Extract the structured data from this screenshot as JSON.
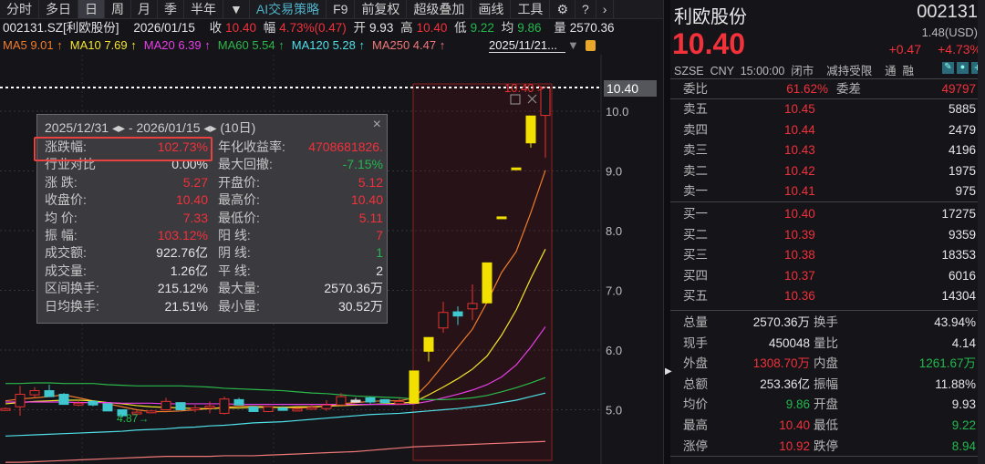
{
  "toolbar": {
    "tabs": [
      {
        "label": "分时"
      },
      {
        "label": "多日"
      },
      {
        "label": "日",
        "active": true
      },
      {
        "label": "周"
      },
      {
        "label": "月"
      },
      {
        "label": "季"
      },
      {
        "label": "半年"
      },
      {
        "label": "▼"
      },
      {
        "label": "AI交易策略"
      },
      {
        "label": "F9"
      },
      {
        "label": "前复权"
      },
      {
        "label": "超级叠加"
      },
      {
        "label": "画线"
      },
      {
        "label": "工具"
      },
      {
        "label": "⚙"
      },
      {
        "label": "?"
      },
      {
        "label": "›"
      }
    ]
  },
  "quote_bar": {
    "symbol": "002131.SZ[利欧股份]",
    "date": "2026/01/15",
    "close_label": "收",
    "close": "10.40",
    "chg_label": "幅",
    "chg": "4.73%(0.47)",
    "open_label": "开",
    "open": "9.93",
    "high_label": "高",
    "high": "10.40",
    "low_label": "低",
    "low": "9.22",
    "avg_label": "均",
    "avg": "9.86",
    "vol_label": "量",
    "vol": "2570.36"
  },
  "ma_bar": {
    "items": [
      {
        "label": "MA5 9.01 ↑",
        "color": "#f07c2a"
      },
      {
        "label": "MA10 7.69 ↑",
        "color": "#f5e52a"
      },
      {
        "label": "MA20 6.39 ↑",
        "color": "#e83ee8"
      },
      {
        "label": "MA60 5.54 ↑",
        "color": "#2cb84a"
      },
      {
        "label": "MA120 5.28 ↑",
        "color": "#4fe0e8"
      },
      {
        "label": "MA250 4.47 ↑",
        "color": "#f07878"
      }
    ],
    "range": "2025/11/21..."
  },
  "chart_data": {
    "type": "candlestick",
    "y_ticks": [
      "10.0",
      "9.0",
      "8.0",
      "7.0",
      "6.0",
      "5.0"
    ],
    "last_price": "10.40",
    "last_label": "10.40 >",
    "low_marker": "4.87→",
    "candles": [
      [
        5.0,
        5.02,
        5.04,
        4.98,
        "up"
      ],
      [
        5.05,
        5.26,
        5.4,
        4.9,
        "up"
      ],
      [
        5.25,
        5.32,
        5.38,
        5.2,
        "up"
      ],
      [
        5.32,
        5.22,
        5.42,
        5.22,
        "down"
      ],
      [
        5.26,
        5.09,
        5.28,
        5.09,
        "down"
      ],
      [
        5.11,
        5.11,
        5.16,
        5.06,
        "up"
      ],
      [
        5.14,
        5.08,
        5.16,
        5.06,
        "down"
      ],
      [
        5.1,
        4.98,
        5.1,
        4.98,
        "down"
      ],
      [
        5.0,
        4.9,
        5.0,
        4.87,
        "down"
      ],
      [
        4.96,
        4.96,
        4.99,
        4.93,
        "up"
      ],
      [
        4.95,
        4.98,
        4.99,
        4.95,
        "up"
      ],
      [
        5.0,
        5.14,
        5.2,
        5.0,
        "up"
      ],
      [
        5.12,
        5.0,
        5.12,
        5.0,
        "down"
      ],
      [
        5.0,
        5.03,
        5.08,
        4.96,
        "up"
      ],
      [
        5.06,
        5.06,
        5.14,
        4.94,
        "up"
      ],
      [
        4.94,
        5.18,
        5.22,
        4.92,
        "up"
      ],
      [
        5.17,
        5.08,
        5.2,
        5.08,
        "down"
      ],
      [
        5.05,
        4.97,
        5.05,
        4.97,
        "down"
      ],
      [
        4.97,
        5.05,
        5.06,
        4.96,
        "up"
      ],
      [
        5.03,
        4.99,
        5.06,
        4.99,
        "down"
      ],
      [
        5.0,
        5.01,
        5.03,
        4.98,
        "up"
      ],
      [
        5.04,
        5.04,
        5.08,
        5.0,
        "up"
      ],
      [
        5.02,
        5.08,
        5.16,
        4.98,
        "up"
      ],
      [
        5.08,
        5.22,
        5.28,
        5.08,
        "up"
      ],
      [
        5.16,
        5.16,
        5.2,
        5.12,
        "doji"
      ],
      [
        5.2,
        5.13,
        5.22,
        5.1,
        "down"
      ],
      [
        5.17,
        5.12,
        5.18,
        5.1,
        "down"
      ],
      [
        5.1,
        5.14,
        5.2,
        5.08,
        "up"
      ],
      [
        5.11,
        5.65,
        5.65,
        5.11,
        "limit"
      ],
      [
        5.98,
        6.21,
        6.21,
        5.81,
        "limit"
      ],
      [
        6.37,
        6.63,
        6.81,
        6.29,
        "up"
      ],
      [
        6.64,
        6.57,
        6.73,
        6.42,
        "down"
      ],
      [
        6.69,
        6.78,
        7.1,
        6.5,
        "up"
      ],
      [
        6.79,
        7.46,
        7.46,
        6.79,
        "limit"
      ],
      [
        8.21,
        8.23,
        8.23,
        8.21,
        "limit"
      ],
      [
        9.02,
        9.05,
        9.05,
        9.02,
        "limit"
      ],
      [
        9.47,
        9.92,
        9.92,
        9.39,
        "limit"
      ],
      [
        9.93,
        10.4,
        10.4,
        9.22,
        "up"
      ]
    ],
    "ma": [
      {
        "name": "MA5",
        "color": "#f07c2a",
        "values": [
          5.15,
          5.18,
          5.2,
          5.22,
          5.25,
          5.2,
          5.15,
          5.1,
          5.05,
          5.0,
          4.97,
          4.97,
          4.98,
          5.0,
          5.02,
          5.04,
          5.06,
          5.06,
          5.05,
          5.04,
          5.03,
          5.04,
          5.06,
          5.1,
          5.12,
          5.14,
          5.15,
          5.15,
          5.2,
          5.45,
          5.75,
          6.05,
          6.35,
          6.8,
          7.3,
          7.65,
          8.3,
          9.01
        ]
      },
      {
        "name": "MA10",
        "color": "#f5e52a",
        "values": [
          5.1,
          5.12,
          5.14,
          5.15,
          5.16,
          5.16,
          5.15,
          5.12,
          5.1,
          5.07,
          5.05,
          5.04,
          5.03,
          5.02,
          5.02,
          5.03,
          5.03,
          5.04,
          5.04,
          5.04,
          5.05,
          5.05,
          5.06,
          5.07,
          5.08,
          5.09,
          5.1,
          5.11,
          5.13,
          5.25,
          5.38,
          5.52,
          5.68,
          5.9,
          6.25,
          6.67,
          7.2,
          7.69
        ]
      },
      {
        "name": "MA20",
        "color": "#e83ee8",
        "values": [
          5.13,
          5.13,
          5.13,
          5.13,
          5.13,
          5.12,
          5.12,
          5.12,
          5.11,
          5.11,
          5.11,
          5.1,
          5.1,
          5.1,
          5.1,
          5.1,
          5.09,
          5.09,
          5.09,
          5.09,
          5.09,
          5.09,
          5.09,
          5.09,
          5.09,
          5.09,
          5.09,
          5.09,
          5.1,
          5.14,
          5.2,
          5.26,
          5.33,
          5.42,
          5.55,
          5.75,
          6.05,
          6.39
        ]
      },
      {
        "name": "MA60",
        "color": "#2cb84a",
        "values": [
          5.44,
          5.44,
          5.45,
          5.45,
          5.44,
          5.44,
          5.44,
          5.42,
          5.41,
          5.4,
          5.4,
          5.4,
          5.4,
          5.39,
          5.38,
          5.36,
          5.35,
          5.34,
          5.33,
          5.32,
          5.3,
          5.28,
          5.27,
          5.25,
          5.23,
          5.22,
          5.21,
          5.2,
          5.18,
          5.17,
          5.17,
          5.18,
          5.2,
          5.24,
          5.3,
          5.37,
          5.45,
          5.54
        ]
      },
      {
        "name": "MA120",
        "color": "#4fe0e8",
        "values": [
          4.56,
          4.57,
          4.58,
          4.59,
          4.6,
          4.61,
          4.62,
          4.63,
          4.64,
          4.66,
          4.67,
          4.68,
          4.7,
          4.71,
          4.73,
          4.74,
          4.76,
          4.78,
          4.79,
          4.8,
          4.82,
          4.84,
          4.86,
          4.88,
          4.9,
          4.92,
          4.93,
          4.94,
          4.96,
          4.98,
          5.0,
          5.02,
          5.05,
          5.08,
          5.12,
          5.16,
          5.22,
          5.28
        ]
      },
      {
        "name": "MA250",
        "color": "#f07878",
        "values": [
          4.12,
          4.12,
          4.13,
          4.14,
          4.15,
          4.16,
          4.17,
          4.18,
          4.19,
          4.2,
          4.21,
          4.22,
          4.22,
          4.22,
          4.22,
          4.23,
          4.23,
          4.23,
          4.24,
          4.25,
          4.26,
          4.27,
          4.28,
          4.29,
          4.3,
          4.32,
          4.34,
          4.36,
          4.38,
          4.39,
          4.4,
          4.41,
          4.42,
          4.43,
          4.44,
          4.45,
          4.46,
          4.47
        ]
      }
    ]
  },
  "tooltip": {
    "range": "2025/12/31 ◂▸ - 2026/01/15 ◂▸    (10日)",
    "close": "×",
    "rows": [
      {
        "l": "涨跌幅:",
        "lv": "102.73%",
        "lc": "red",
        "r": "年化收益率:",
        "rv": "4708681826.",
        "rc": "red"
      },
      {
        "l": "行业对比",
        "lv": "0.00%",
        "lc": "white",
        "r": "最大回撤:",
        "rv": "-7.15%",
        "rc": "green"
      },
      {
        "l": "涨  跌:",
        "lv": "5.27",
        "lc": "red",
        "r": "开盘价:",
        "rv": "5.12",
        "rc": "red"
      },
      {
        "l": "收盘价:",
        "lv": "10.40",
        "lc": "red",
        "r": "最高价:",
        "rv": "10.40",
        "rc": "red"
      },
      {
        "l": "均  价:",
        "lv": "7.33",
        "lc": "red",
        "r": "最低价:",
        "rv": "5.11",
        "rc": "red"
      },
      {
        "l": "振  幅:",
        "lv": "103.12%",
        "lc": "red",
        "r": "阳  线:",
        "rv": "7",
        "rc": "red"
      },
      {
        "l": "成交额:",
        "lv": "922.76亿",
        "lc": "white",
        "r": "阴  线:",
        "rv": "1",
        "rc": "green"
      },
      {
        "l": "成交量:",
        "lv": "1.26亿",
        "lc": "white",
        "r": "平 线:",
        "rv": "2",
        "rc": "white"
      },
      {
        "l": "区间换手:",
        "lv": "215.12%",
        "lc": "white",
        "r": "最大量:",
        "rv": "2570.36万",
        "rc": "white"
      },
      {
        "l": "日均换手:",
        "lv": "21.51%",
        "lc": "white",
        "r": "最小量:",
        "rv": "30.52万",
        "rc": "white"
      }
    ]
  },
  "panel": {
    "name": "利欧股份",
    "code": "002131",
    "price": "10.40",
    "usd": "1.48(USD)",
    "chg": "+0.47",
    "pct": "+4.73%",
    "info": "SZSE  CNY  15:00:00  闭市    减持受限    通  融",
    "wb_label": "委比",
    "wb": "61.62%",
    "wc_label": "委差",
    "wc": "49797",
    "asks": [
      {
        "l": "卖五",
        "p": "10.45",
        "v": "5885"
      },
      {
        "l": "卖四",
        "p": "10.44",
        "v": "2479"
      },
      {
        "l": "卖三",
        "p": "10.43",
        "v": "4196"
      },
      {
        "l": "卖二",
        "p": "10.42",
        "v": "1975"
      },
      {
        "l": "卖一",
        "p": "10.41",
        "v": "975"
      }
    ],
    "bids": [
      {
        "l": "买一",
        "p": "10.40",
        "v": "17275"
      },
      {
        "l": "买二",
        "p": "10.39",
        "v": "9359"
      },
      {
        "l": "买三",
        "p": "10.38",
        "v": "18353"
      },
      {
        "l": "买四",
        "p": "10.37",
        "v": "6016"
      },
      {
        "l": "买五",
        "p": "10.36",
        "v": "14304"
      }
    ],
    "stats": [
      {
        "l": "总量",
        "lv": "2570.36万",
        "lc": "white",
        "r": "换手",
        "rv": "43.94%",
        "rc": "white"
      },
      {
        "l": "现手",
        "lv": "450048",
        "lc": "white",
        "r": "量比",
        "rv": "4.14",
        "rc": "white"
      },
      {
        "l": "外盘",
        "lv": "1308.70万",
        "lc": "red",
        "r": "内盘",
        "rv": "1261.67万",
        "rc": "green"
      },
      {
        "l": "总额",
        "lv": "253.36亿",
        "lc": "white",
        "r": "振幅",
        "rv": "11.88%",
        "rc": "white"
      },
      {
        "l": "均价",
        "lv": "9.86",
        "lc": "green",
        "r": "开盘",
        "rv": "9.93",
        "rc": "white"
      },
      {
        "l": "最高",
        "lv": "10.40",
        "lc": "red",
        "r": "最低",
        "rv": "9.22",
        "rc": "green"
      },
      {
        "l": "涨停",
        "lv": "10.92",
        "lc": "red",
        "r": "跌停",
        "rv": "8.94",
        "rc": "green"
      }
    ]
  }
}
